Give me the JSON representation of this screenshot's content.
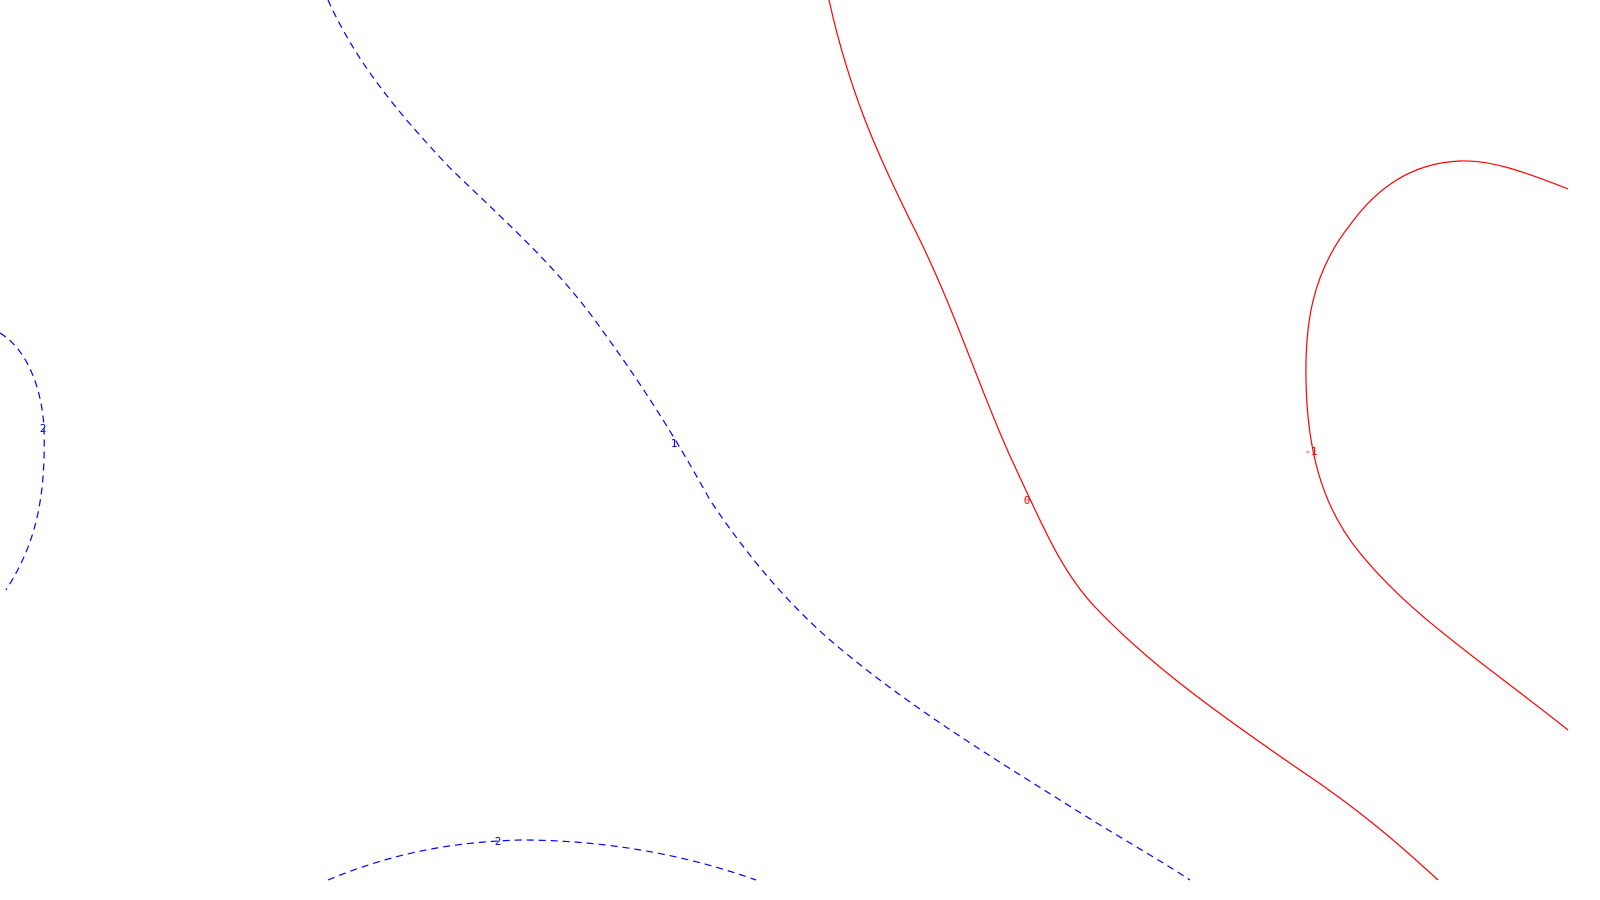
{
  "plot": {
    "colors": {
      "negative": "#ff0000",
      "positive": "#0000ff",
      "background": "#ffffff"
    },
    "contours": [
      {
        "id": "contour-level-2-left",
        "level_label": "2",
        "kind": "positive",
        "dashed": true
      },
      {
        "id": "contour-level-1",
        "level_label": "1",
        "kind": "positive",
        "dashed": true
      },
      {
        "id": "contour-level-2-bottom",
        "level_label": "2",
        "kind": "positive",
        "dashed": true
      },
      {
        "id": "contour-level-0",
        "level_label": "0",
        "kind": "negative",
        "dashed": false
      },
      {
        "id": "contour-level-minus-1",
        "level_label": "-1",
        "kind": "negative",
        "dashed": false
      }
    ]
  }
}
